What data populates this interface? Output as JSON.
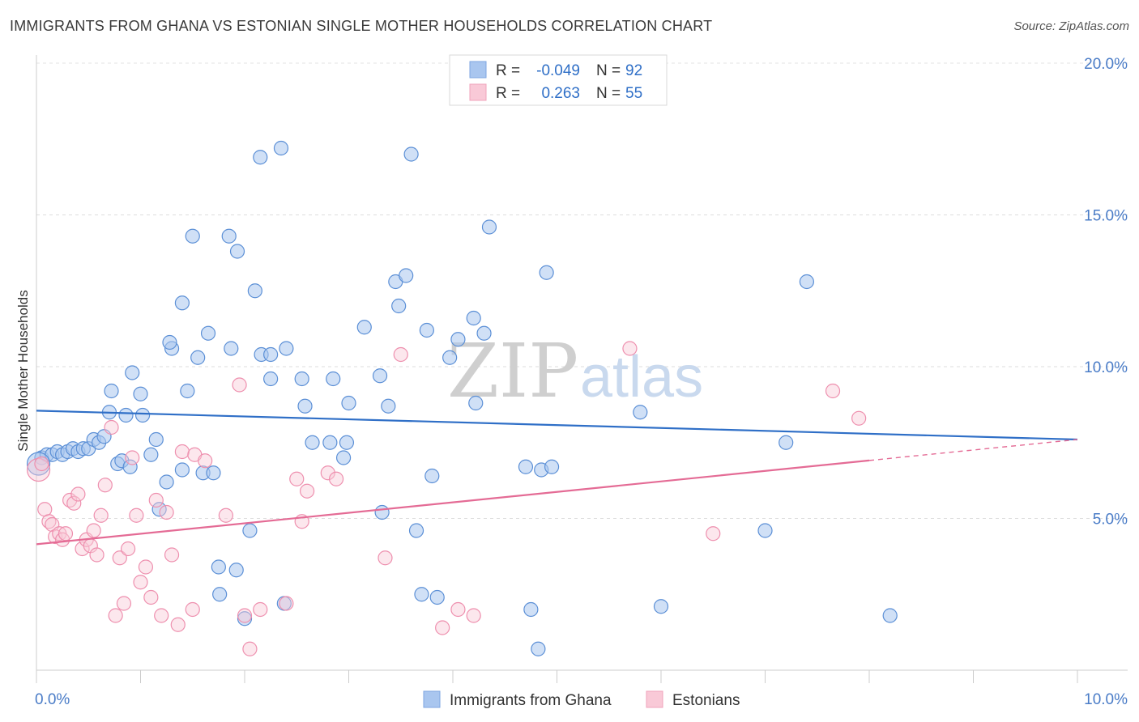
{
  "header": {
    "title": "IMMIGRANTS FROM GHANA VS ESTONIAN SINGLE MOTHER HOUSEHOLDS CORRELATION CHART",
    "source": "Source: ZipAtlas.com"
  },
  "watermark": {
    "zip": "ZIP",
    "atlas": "atlas"
  },
  "legend": {
    "rows": [
      {
        "r_label": "R =",
        "r_value": "-0.049",
        "n_label": "N =",
        "n_value": "92",
        "color": "#a9c6ef"
      },
      {
        "r_label": "R =",
        "r_value": "0.263",
        "n_label": "N =",
        "n_value": "55",
        "color": "#f5b8ca"
      }
    ]
  },
  "bottom_legend": [
    {
      "label": "Immigrants from Ghana",
      "color": "#a9c6ef"
    },
    {
      "label": "Estonians",
      "color": "#f5b8ca"
    }
  ],
  "chart_data": {
    "type": "scatter",
    "title": "IMMIGRANTS FROM GHANA VS ESTONIAN SINGLE MOTHER HOUSEHOLDS CORRELATION CHART",
    "xlabel": "",
    "ylabel": "Single Mother Households",
    "xlim": [
      0,
      10
    ],
    "ylim": [
      0,
      20
    ],
    "x_tick_labels": [
      "0.0%",
      "10.0%"
    ],
    "y_ticks": [
      5,
      10,
      15,
      20
    ],
    "y_tick_labels": [
      "5.0%",
      "10.0%",
      "15.0%",
      "20.0%"
    ],
    "grid": true,
    "colors": {
      "ghana": "#5b8fd6",
      "estonians": "#ee8fae",
      "ghana_line": "#2f6fc7",
      "estonians_line": "#e46b95"
    },
    "series": [
      {
        "name": "Immigrants from Ghana",
        "points": [
          [
            0.05,
            7.0
          ],
          [
            0.1,
            7.1
          ],
          [
            0.15,
            7.1
          ],
          [
            0.2,
            7.2
          ],
          [
            0.25,
            7.1
          ],
          [
            0.3,
            7.2
          ],
          [
            0.35,
            7.3
          ],
          [
            0.4,
            7.2
          ],
          [
            0.45,
            7.3
          ],
          [
            0.5,
            7.3
          ],
          [
            0.55,
            7.6
          ],
          [
            0.6,
            7.5
          ],
          [
            0.65,
            7.7
          ],
          [
            0.7,
            8.5
          ],
          [
            0.72,
            9.2
          ],
          [
            0.78,
            6.8
          ],
          [
            0.82,
            6.9
          ],
          [
            0.86,
            8.4
          ],
          [
            0.9,
            6.7
          ],
          [
            0.92,
            9.8
          ],
          [
            1.0,
            9.1
          ],
          [
            1.02,
            8.4
          ],
          [
            1.1,
            7.1
          ],
          [
            1.15,
            7.6
          ],
          [
            1.18,
            5.3
          ],
          [
            1.25,
            6.2
          ],
          [
            1.3,
            10.6
          ],
          [
            1.28,
            10.8
          ],
          [
            1.4,
            6.6
          ],
          [
            1.4,
            12.1
          ],
          [
            1.45,
            9.2
          ],
          [
            1.5,
            14.3
          ],
          [
            1.55,
            10.3
          ],
          [
            1.6,
            6.5
          ],
          [
            1.65,
            11.1
          ],
          [
            1.7,
            6.5
          ],
          [
            1.75,
            3.4
          ],
          [
            1.76,
            2.5
          ],
          [
            1.85,
            14.3
          ],
          [
            1.87,
            10.6
          ],
          [
            1.93,
            13.8
          ],
          [
            1.92,
            3.3
          ],
          [
            2.05,
            4.6
          ],
          [
            2.0,
            1.7
          ],
          [
            2.1,
            12.5
          ],
          [
            2.15,
            16.9
          ],
          [
            2.16,
            10.4
          ],
          [
            2.25,
            10.4
          ],
          [
            2.25,
            9.6
          ],
          [
            2.35,
            17.2
          ],
          [
            2.38,
            2.2
          ],
          [
            2.4,
            10.6
          ],
          [
            2.55,
            9.6
          ],
          [
            2.58,
            8.7
          ],
          [
            2.65,
            7.5
          ],
          [
            2.82,
            7.5
          ],
          [
            2.85,
            9.6
          ],
          [
            2.95,
            7.0
          ],
          [
            2.98,
            7.5
          ],
          [
            3.0,
            8.8
          ],
          [
            3.15,
            11.3
          ],
          [
            3.3,
            9.7
          ],
          [
            3.32,
            5.2
          ],
          [
            3.38,
            8.7
          ],
          [
            3.45,
            12.8
          ],
          [
            3.48,
            12.0
          ],
          [
            3.55,
            13.0
          ],
          [
            3.6,
            17.0
          ],
          [
            3.65,
            4.6
          ],
          [
            3.7,
            2.5
          ],
          [
            3.75,
            11.2
          ],
          [
            3.8,
            6.4
          ],
          [
            3.85,
            2.4
          ],
          [
            3.97,
            10.3
          ],
          [
            4.05,
            10.9
          ],
          [
            4.2,
            11.6
          ],
          [
            4.22,
            8.8
          ],
          [
            4.3,
            11.1
          ],
          [
            4.35,
            14.6
          ],
          [
            4.7,
            6.7
          ],
          [
            4.75,
            2.0
          ],
          [
            4.82,
            0.7
          ],
          [
            4.85,
            6.6
          ],
          [
            4.9,
            13.1
          ],
          [
            4.95,
            6.7
          ],
          [
            5.8,
            8.5
          ],
          [
            6.0,
            2.1
          ],
          [
            7.0,
            4.6
          ],
          [
            7.2,
            7.5
          ],
          [
            7.4,
            12.8
          ],
          [
            8.2,
            1.8
          ],
          [
            0.02,
            6.8
          ]
        ]
      },
      {
        "name": "Estonians",
        "points": [
          [
            0.02,
            6.6
          ],
          [
            0.05,
            6.8
          ],
          [
            0.08,
            5.3
          ],
          [
            0.12,
            4.9
          ],
          [
            0.15,
            4.8
          ],
          [
            0.18,
            4.4
          ],
          [
            0.22,
            4.5
          ],
          [
            0.25,
            4.3
          ],
          [
            0.28,
            4.5
          ],
          [
            0.32,
            5.6
          ],
          [
            0.36,
            5.5
          ],
          [
            0.4,
            5.8
          ],
          [
            0.44,
            4.0
          ],
          [
            0.48,
            4.3
          ],
          [
            0.52,
            4.1
          ],
          [
            0.55,
            4.6
          ],
          [
            0.58,
            3.8
          ],
          [
            0.62,
            5.1
          ],
          [
            0.66,
            6.1
          ],
          [
            0.72,
            8.0
          ],
          [
            0.76,
            1.8
          ],
          [
            0.8,
            3.7
          ],
          [
            0.84,
            2.2
          ],
          [
            0.88,
            4.0
          ],
          [
            0.92,
            7.0
          ],
          [
            0.96,
            5.1
          ],
          [
            1.0,
            2.9
          ],
          [
            1.05,
            3.4
          ],
          [
            1.1,
            2.4
          ],
          [
            1.15,
            5.6
          ],
          [
            1.2,
            1.8
          ],
          [
            1.25,
            5.2
          ],
          [
            1.3,
            3.8
          ],
          [
            1.36,
            1.5
          ],
          [
            1.4,
            7.2
          ],
          [
            1.5,
            2.0
          ],
          [
            1.52,
            7.1
          ],
          [
            1.62,
            6.9
          ],
          [
            1.82,
            5.1
          ],
          [
            1.95,
            9.4
          ],
          [
            2.0,
            1.8
          ],
          [
            2.05,
            0.7
          ],
          [
            2.15,
            2.0
          ],
          [
            2.4,
            2.2
          ],
          [
            2.5,
            6.3
          ],
          [
            2.55,
            4.9
          ],
          [
            2.6,
            5.9
          ],
          [
            2.8,
            6.5
          ],
          [
            2.88,
            6.3
          ],
          [
            3.35,
            3.7
          ],
          [
            3.5,
            10.4
          ],
          [
            3.9,
            1.4
          ],
          [
            4.05,
            2.0
          ],
          [
            4.2,
            1.8
          ],
          [
            5.7,
            10.6
          ]
        ]
      }
    ],
    "extra_points": {
      "Estonians": [
        [
          6.5,
          4.5
        ],
        [
          7.65,
          9.2
        ],
        [
          7.9,
          8.3
        ]
      ]
    },
    "trend_lines": [
      {
        "series": "Immigrants from Ghana",
        "x": [
          0,
          10
        ],
        "y": [
          8.55,
          7.6
        ],
        "dashed_from": null
      },
      {
        "series": "Estonians",
        "x": [
          0,
          10
        ],
        "y": [
          4.15,
          7.6
        ],
        "dashed_from": 8.0
      }
    ]
  }
}
